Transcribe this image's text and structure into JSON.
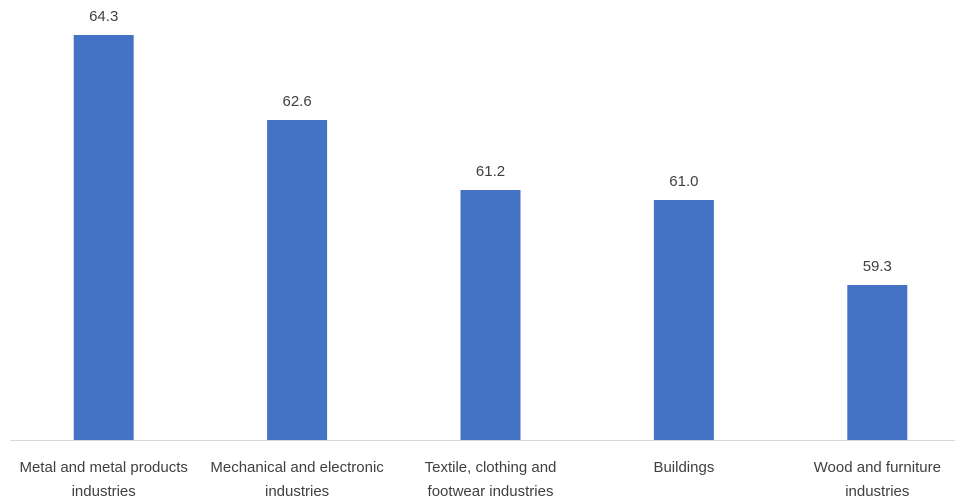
{
  "chart_data": {
    "type": "bar",
    "categories": [
      "Metal and metal products industries",
      "Mechanical and electronic industries",
      "Textile, clothing and footwear industries",
      "Buildings",
      "Wood and furniture industries"
    ],
    "values": [
      64.3,
      62.6,
      61.2,
      61.0,
      59.3
    ],
    "value_labels": [
      "64.3",
      "62.6",
      "61.2",
      "61.0",
      "59.3"
    ],
    "color": "#4472c4",
    "ylim": [
      56.2,
      65
    ]
  }
}
